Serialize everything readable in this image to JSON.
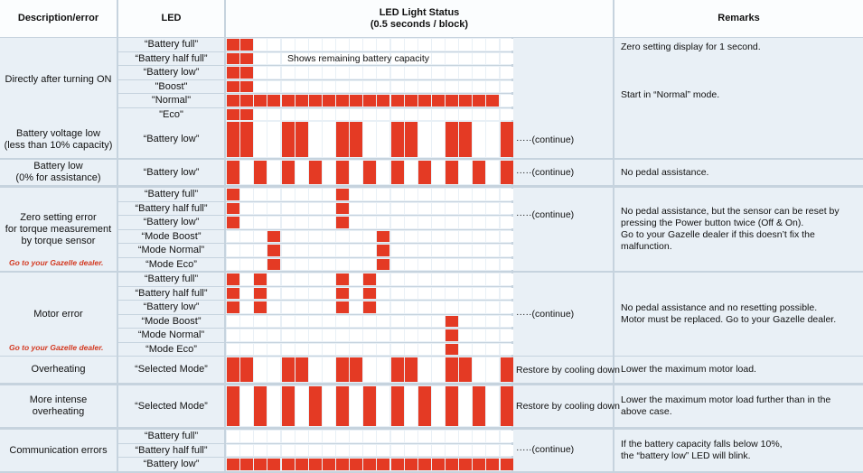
{
  "header": {
    "col_description": "Description/error",
    "col_led": "LED",
    "col_status_title": "LED Light Status",
    "col_status_sub": "(0.5 seconds / block)",
    "col_remarks": "Remarks"
  },
  "sections": [
    {
      "id": "turn-on",
      "title": "Directly after turning ON",
      "note": "",
      "leds": [
        "“Battery full”",
        "“Battery half full”",
        "“Battery low”",
        "\"Boost\"",
        "\"Normal\"",
        "\"Eco\""
      ],
      "pattern_note": "Shows remaining battery capacity",
      "continue_text": "",
      "remarks": [
        "Zero setting display for 1 second.",
        "Start in “Normal” mode."
      ]
    },
    {
      "id": "battery-voltage-low",
      "title": "Battery voltage low\n(less than 10% capacity)",
      "note": "",
      "leds": [
        "“Battery low”"
      ],
      "continue_text": "·····(continue)",
      "remarks": []
    },
    {
      "id": "battery-low",
      "title": "Battery low\n(0% for assistance)",
      "note": "",
      "leds": [
        "“Battery low”"
      ],
      "continue_text": "·····(continue)",
      "remarks": [
        "No pedal assistance."
      ]
    },
    {
      "id": "zero-setting-error",
      "title": "Zero setting error\nfor torque measurement\nby torque sensor",
      "note": "Go to your Gazelle dealer.",
      "leds": [
        "“Battery full”",
        "“Battery half full”",
        "“Battery low”",
        "“Mode Boost”",
        "“Mode Normal”",
        "“Mode Eco”"
      ],
      "continue_text": "·····(continue)",
      "remarks": [
        "No pedal assistance, but the sensor can be reset by pressing the Power button twice (Off & On).\nGo to your Gazelle dealer if this doesn’t fix the malfunction."
      ]
    },
    {
      "id": "motor-error",
      "title": "Motor error",
      "note": "Go to your Gazelle dealer.",
      "leds": [
        "“Battery full”",
        "“Battery half full”",
        "“Battery low”",
        "“Mode Boost”",
        "“Mode Normal”",
        "“Mode Eco”"
      ],
      "continue_text": "·····(continue)",
      "remarks": [
        "No pedal assistance and no resetting possible.\nMotor must be replaced. Go to your Gazelle dealer."
      ]
    },
    {
      "id": "overheating",
      "title": "Overheating",
      "note": "",
      "leds": [
        "“Selected Mode”"
      ],
      "continue_text": "Restore by cooling down",
      "remarks": [
        "Lower the maximum motor load."
      ]
    },
    {
      "id": "more-intense-overheating",
      "title": "More intense\noverheating",
      "note": "",
      "leds": [
        "“Selected Mode”"
      ],
      "continue_text": "Restore by cooling down",
      "remarks": [
        "Lower the maximum motor load further than in the above case."
      ]
    },
    {
      "id": "communication-errors",
      "title": "Communication errors",
      "note": "",
      "leds": [
        "“Battery full”",
        "“Battery half full”",
        "“Battery low”"
      ],
      "continue_text": "·····(continue)",
      "remarks": [
        "If the battery capacity falls below 10%,\nthe “battery low” LED will blink."
      ]
    }
  ],
  "led_status": {
    "turn-on": [
      "11",
      "11",
      "11",
      "11",
      "11111111111111111111",
      "11"
    ],
    "battery-voltage-low": [
      "1100110011001100110011001100"
    ],
    "battery-low": [
      "1010101010101010101010101010"
    ],
    "zero-setting-error": [
      "1000000010000000",
      "1000000010000000",
      "1000000010000000",
      "00010000000100000000000000000000001",
      "00010000000100000000000000000000001",
      "00010000000100000000000000000000001"
    ],
    "motor-error": [
      "1010000010100000000000",
      "1010000010100000000000",
      "1010000010100000000000",
      "0000000000000000100000001",
      "0000000000000000100000001",
      "0000000000000000100000001"
    ],
    "overheating": [
      "1100110011001100110011001100"
    ],
    "more-intense-overheating": [
      "1010101010101010101010101010101010101010"
    ],
    "communication-errors": [
      "0",
      "0",
      "1111111111111111111111111111111111111111111111111111"
    ]
  },
  "colors": {
    "led_on": "#e43a24",
    "led_off": "#ffffff",
    "cell_bg": "#e9f0f6",
    "header_bg": "#fbfdfe",
    "grid": "#c6d3de",
    "note": "#d33a22"
  }
}
